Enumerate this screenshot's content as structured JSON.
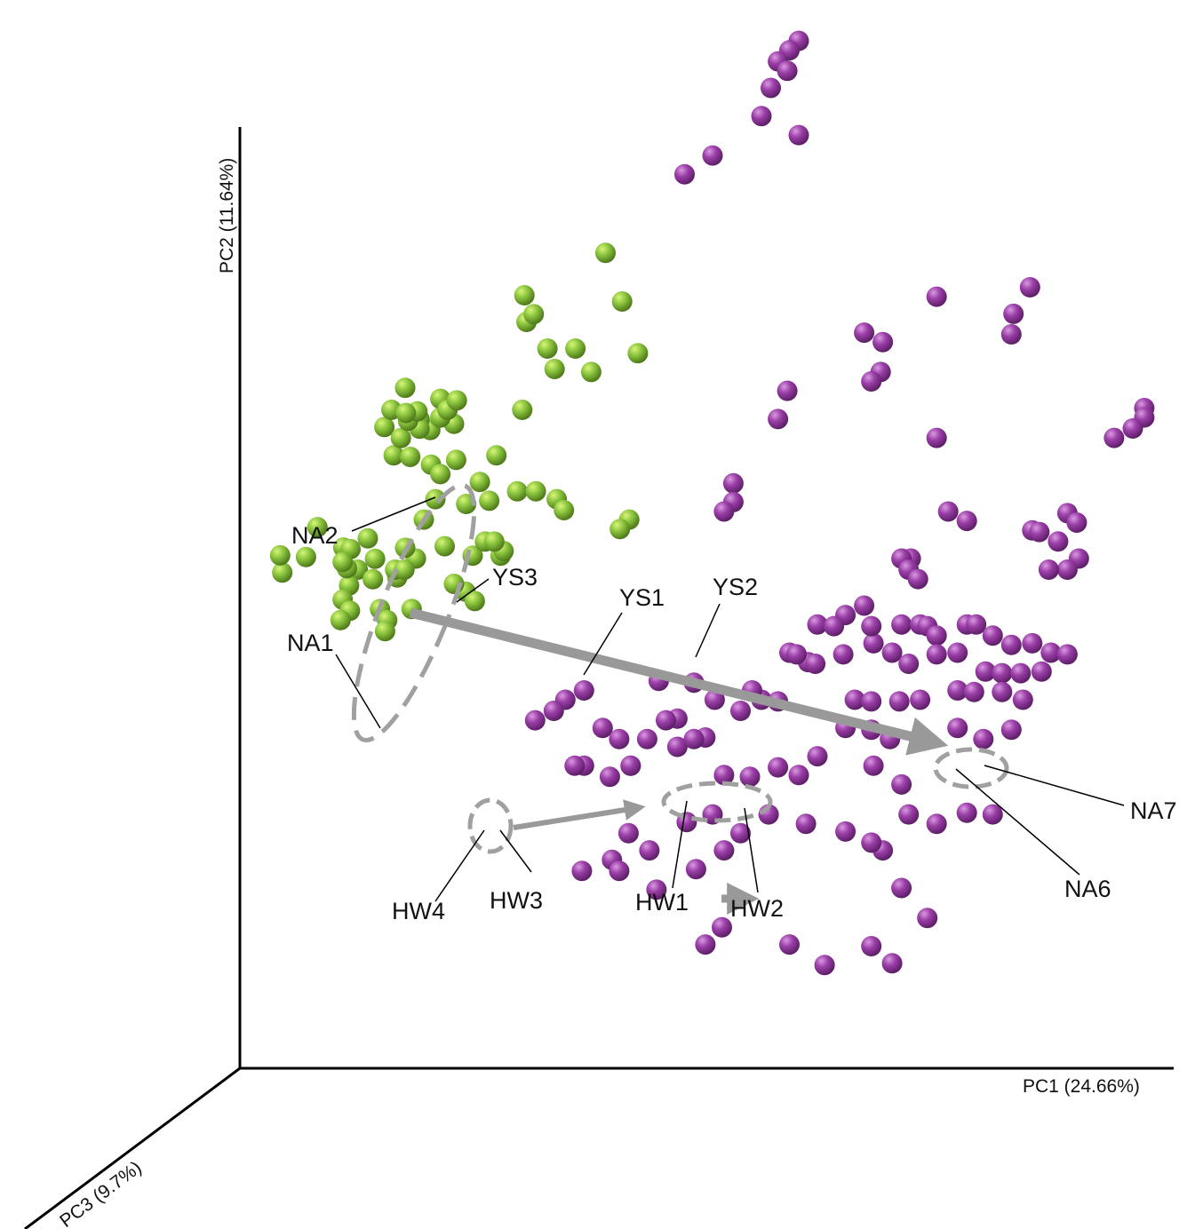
{
  "chart_data": {
    "type": "scatter",
    "projection": "3d",
    "axes": {
      "x": {
        "label": "PC1 (24.66%)"
      },
      "y": {
        "label": "PC2 (11.64%)"
      },
      "z": {
        "label": "PC3 (9.7%)"
      }
    },
    "grid": false,
    "legend": "none",
    "series": [
      {
        "color": "#8cc63f",
        "points": [
          [
            0.05,
            0.53,
            0.02
          ],
          [
            0.05,
            0.55,
            0.03
          ],
          [
            0.08,
            0.55,
            0.04
          ],
          [
            0.09,
            0.58,
            0.03
          ],
          [
            0.12,
            0.56,
            0.04
          ],
          [
            0.13,
            0.56,
            0.05
          ],
          [
            0.14,
            0.54,
            0.06
          ],
          [
            0.18,
            0.54,
            0.06
          ],
          [
            0.18,
            0.53,
            0.05
          ],
          [
            0.2,
            0.55,
            0.05
          ],
          [
            0.19,
            0.54,
            0.06
          ],
          [
            0.14,
            0.53,
            0.1
          ],
          [
            0.17,
            0.54,
            0.12
          ],
          [
            0.17,
            0.56,
            0.11
          ],
          [
            0.2,
            0.57,
            0.1
          ],
          [
            0.16,
            0.58,
            0.1
          ],
          [
            0.14,
            0.55,
            0.11
          ],
          [
            0.14,
            0.52,
            0.13
          ],
          [
            0.15,
            0.51,
            0.14
          ],
          [
            0.14,
            0.5,
            0.14
          ],
          [
            0.18,
            0.51,
            0.13
          ],
          [
            0.19,
            0.5,
            0.14
          ],
          [
            0.19,
            0.49,
            0.15
          ],
          [
            0.14,
            0.56,
            0.13
          ],
          [
            0.21,
            0.71,
            0.13
          ],
          [
            0.22,
            0.71,
            0.12
          ],
          [
            0.25,
            0.72,
            0.12
          ],
          [
            0.24,
            0.71,
            0.11
          ],
          [
            0.26,
            0.73,
            0.12
          ],
          [
            0.22,
            0.72,
            0.13
          ],
          [
            0.2,
            0.69,
            0.12
          ],
          [
            0.19,
            0.67,
            0.11
          ],
          [
            0.18,
            0.7,
            0.11
          ],
          [
            0.25,
            0.66,
            0.08
          ],
          [
            0.22,
            0.69,
            0.07
          ],
          [
            0.23,
            0.66,
            0.11
          ],
          [
            0.19,
            0.72,
            0.12
          ],
          [
            0.22,
            0.7,
            0.12
          ],
          [
            0.21,
            0.67,
            0.12
          ],
          [
            0.2,
            0.74,
            0.1
          ],
          [
            0.24,
            0.65,
            0.11
          ],
          [
            0.24,
            0.73,
            0.11
          ],
          [
            0.21,
            0.72,
            0.14
          ],
          [
            0.25,
            0.7,
            0.09
          ],
          [
            0.33,
            0.72,
            0.12
          ],
          [
            0.3,
            0.67,
            0.11
          ],
          [
            0.27,
            0.62,
            0.12
          ],
          [
            0.29,
            0.58,
            0.12
          ],
          [
            0.28,
            0.64,
            0.1
          ],
          [
            0.29,
            0.62,
            0.1
          ],
          [
            0.23,
            0.62,
            0.09
          ],
          [
            0.22,
            0.6,
            0.1
          ],
          [
            0.37,
            0.61,
            0.1
          ],
          [
            0.36,
            0.62,
            0.09
          ],
          [
            0.32,
            0.63,
            0.1
          ],
          [
            0.34,
            0.63,
            0.1
          ],
          [
            0.44,
            0.6,
            0.1
          ],
          [
            0.43,
            0.59,
            0.1
          ],
          [
            0.3,
            0.56,
            0.09
          ],
          [
            0.24,
            0.57,
            0.09
          ],
          [
            0.27,
            0.56,
            0.09
          ],
          [
            0.31,
            0.57,
            0.12
          ],
          [
            0.3,
            0.58,
            0.12
          ],
          [
            0.26,
            0.52,
            0.08
          ],
          [
            0.27,
            0.51,
            0.08
          ],
          [
            0.2,
            0.5,
            0.07
          ],
          [
            0.25,
            0.53,
            0.09
          ],
          [
            0.33,
            0.84,
            0.11
          ],
          [
            0.34,
            0.82,
            0.11
          ],
          [
            0.33,
            0.81,
            0.1
          ],
          [
            0.35,
            0.78,
            0.09
          ],
          [
            0.36,
            0.76,
            0.1
          ],
          [
            0.38,
            0.78,
            0.09
          ],
          [
            0.41,
            0.88,
            0.08
          ],
          [
            0.43,
            0.83,
            0.09
          ],
          [
            0.39,
            0.75,
            0.06
          ],
          [
            0.44,
            0.77,
            0.06
          ]
        ]
      },
      {
        "color": "#9b3fa8",
        "points": [
          [
            0.66,
            1.16,
            0.05
          ],
          [
            0.67,
            1.16,
            0.06
          ],
          [
            0.67,
            1.16,
            0.07
          ],
          [
            0.61,
            1.1,
            0.05
          ],
          [
            0.6,
            1.09,
            0.05
          ],
          [
            0.59,
            1.08,
            0.06
          ],
          [
            0.6,
            1.07,
            0.06
          ],
          [
            0.58,
            1.05,
            0.05
          ],
          [
            0.57,
            1.02,
            0.05
          ],
          [
            0.61,
            1.0,
            0.05
          ],
          [
            0.52,
            0.98,
            0.06
          ],
          [
            0.49,
            0.96,
            0.06
          ],
          [
            0.76,
            0.83,
            0.06
          ],
          [
            0.86,
            0.84,
            0.06
          ],
          [
            0.84,
            0.81,
            0.05
          ],
          [
            0.84,
            0.79,
            0.06
          ],
          [
            0.68,
            0.79,
            0.05
          ],
          [
            0.7,
            0.78,
            0.05
          ],
          [
            0.7,
            0.75,
            0.06
          ],
          [
            0.69,
            0.74,
            0.06
          ],
          [
            0.6,
            0.73,
            0.06
          ],
          [
            0.59,
            0.7,
            0.06
          ],
          [
            0.54,
            0.63,
            0.05
          ],
          [
            0.54,
            0.61,
            0.05
          ],
          [
            0.53,
            0.6,
            0.05
          ],
          [
            0.76,
            0.68,
            0.06
          ],
          [
            0.98,
            0.71,
            0.05
          ],
          [
            0.98,
            0.7,
            0.05
          ],
          [
            0.97,
            0.69,
            0.06
          ],
          [
            0.95,
            0.68,
            0.06
          ],
          [
            0.79,
            0.59,
            0.05
          ],
          [
            0.9,
            0.6,
            0.06
          ],
          [
            0.91,
            0.59,
            0.06
          ],
          [
            0.87,
            0.58,
            0.06
          ],
          [
            0.86,
            0.58,
            0.05
          ],
          [
            0.89,
            0.57,
            0.06
          ],
          [
            0.91,
            0.55,
            0.05
          ],
          [
            0.9,
            0.54,
            0.06
          ],
          [
            0.88,
            0.54,
            0.06
          ],
          [
            0.73,
            0.55,
            0.05
          ],
          [
            0.72,
            0.55,
            0.05
          ],
          [
            0.73,
            0.54,
            0.06
          ],
          [
            0.74,
            0.53,
            0.06
          ],
          [
            0.68,
            0.5,
            0.05
          ],
          [
            0.66,
            0.49,
            0.05
          ],
          [
            0.63,
            0.48,
            0.05
          ],
          [
            0.65,
            0.48,
            0.06
          ],
          [
            0.69,
            0.48,
            0.06
          ],
          [
            0.72,
            0.48,
            0.05
          ],
          [
            0.74,
            0.48,
            0.05
          ],
          [
            0.75,
            0.48,
            0.06
          ],
          [
            0.76,
            0.47,
            0.06
          ],
          [
            0.79,
            0.48,
            0.05
          ],
          [
            0.8,
            0.48,
            0.05
          ],
          [
            0.82,
            0.47,
            0.06
          ],
          [
            0.84,
            0.46,
            0.06
          ],
          [
            0.86,
            0.46,
            0.05
          ],
          [
            0.88,
            0.45,
            0.05
          ],
          [
            0.9,
            0.45,
            0.06
          ],
          [
            0.61,
            0.45,
            0.06
          ],
          [
            0.6,
            0.45,
            0.05
          ],
          [
            0.62,
            0.44,
            0.05
          ],
          [
            0.63,
            0.44,
            0.06
          ],
          [
            0.66,
            0.45,
            0.06
          ],
          [
            0.69,
            0.46,
            0.05
          ],
          [
            0.71,
            0.45,
            0.05
          ],
          [
            0.73,
            0.44,
            0.06
          ],
          [
            0.76,
            0.45,
            0.06
          ],
          [
            0.78,
            0.45,
            0.05
          ],
          [
            0.81,
            0.43,
            0.05
          ],
          [
            0.83,
            0.43,
            0.06
          ],
          [
            0.85,
            0.43,
            0.06
          ],
          [
            0.87,
            0.43,
            0.05
          ],
          [
            0.78,
            0.41,
            0.05
          ],
          [
            0.8,
            0.41,
            0.06
          ],
          [
            0.83,
            0.41,
            0.06
          ],
          [
            0.85,
            0.4,
            0.05
          ],
          [
            0.67,
            0.4,
            0.05
          ],
          [
            0.69,
            0.4,
            0.06
          ],
          [
            0.72,
            0.4,
            0.06
          ],
          [
            0.74,
            0.4,
            0.05
          ],
          [
            0.66,
            0.37,
            0.05
          ],
          [
            0.69,
            0.37,
            0.06
          ],
          [
            0.71,
            0.36,
            0.06
          ],
          [
            0.74,
            0.36,
            0.05
          ],
          [
            0.78,
            0.37,
            0.05
          ],
          [
            0.81,
            0.36,
            0.06
          ],
          [
            0.84,
            0.37,
            0.06
          ],
          [
            0.69,
            0.33,
            0.05
          ],
          [
            0.72,
            0.31,
            0.05
          ],
          [
            0.73,
            0.28,
            0.06
          ],
          [
            0.69,
            0.25,
            0.06
          ],
          [
            0.7,
            0.24,
            0.05
          ],
          [
            0.72,
            0.2,
            0.05
          ],
          [
            0.75,
            0.17,
            0.06
          ],
          [
            0.69,
            0.14,
            0.06
          ],
          [
            0.71,
            0.12,
            0.05
          ],
          [
            0.46,
            0.42,
            0.05
          ],
          [
            0.5,
            0.42,
            0.06
          ],
          [
            0.48,
            0.38,
            0.05
          ],
          [
            0.47,
            0.38,
            0.06
          ],
          [
            0.45,
            0.36,
            0.06
          ],
          [
            0.43,
            0.33,
            0.05
          ],
          [
            0.38,
            0.33,
            0.05
          ],
          [
            0.41,
            0.32,
            0.06
          ],
          [
            0.53,
            0.32,
            0.05
          ],
          [
            0.56,
            0.32,
            0.06
          ],
          [
            0.59,
            0.33,
            0.06
          ],
          [
            0.61,
            0.32,
            0.05
          ],
          [
            0.63,
            0.34,
            0.05
          ],
          [
            0.58,
            0.28,
            0.06
          ],
          [
            0.62,
            0.27,
            0.06
          ],
          [
            0.66,
            0.26,
            0.05
          ],
          [
            0.76,
            0.27,
            0.06
          ],
          [
            0.79,
            0.28,
            0.05
          ],
          [
            0.82,
            0.28,
            0.06
          ],
          [
            0.53,
            0.24,
            0.05
          ],
          [
            0.55,
            0.26,
            0.06
          ],
          [
            0.5,
            0.22,
            0.05
          ],
          [
            0.46,
            0.2,
            0.06
          ],
          [
            0.6,
            0.14,
            0.05
          ],
          [
            0.64,
            0.12,
            0.06
          ],
          [
            0.51,
            0.14,
            0.05
          ],
          [
            0.53,
            0.16,
            0.06
          ],
          [
            0.4,
            0.37,
            0.05
          ],
          [
            0.42,
            0.36,
            0.06
          ],
          [
            0.36,
            0.4,
            0.05
          ],
          [
            0.38,
            0.41,
            0.05
          ],
          [
            0.33,
            0.38,
            0.06
          ],
          [
            0.35,
            0.39,
            0.06
          ],
          [
            0.37,
            0.33,
            0.05
          ],
          [
            0.43,
            0.33,
            0.05
          ],
          [
            0.49,
            0.27,
            0.05
          ],
          [
            0.52,
            0.28,
            0.06
          ],
          [
            0.45,
            0.24,
            0.05
          ],
          [
            0.41,
            0.23,
            0.05
          ],
          [
            0.42,
            0.22,
            0.06
          ],
          [
            0.38,
            0.22,
            0.06
          ],
          [
            0.43,
            0.26,
            0.06
          ],
          [
            0.57,
            0.4,
            0.05
          ],
          [
            0.59,
            0.4,
            0.06
          ],
          [
            0.55,
            0.39,
            0.06
          ],
          [
            0.52,
            0.4,
            0.05
          ],
          [
            0.56,
            0.41,
            0.05
          ],
          [
            0.77,
            0.6,
            0.05
          ],
          [
            0.5,
            0.36,
            0.06
          ],
          [
            0.48,
            0.35,
            0.05
          ],
          [
            0.51,
            0.36,
            0.05
          ]
        ]
      }
    ],
    "annotations": [
      {
        "label": "NA2"
      },
      {
        "label": "NA1"
      },
      {
        "label": "YS3"
      },
      {
        "label": "YS1"
      },
      {
        "label": "YS2"
      },
      {
        "label": "HW4"
      },
      {
        "label": "HW3"
      },
      {
        "label": "HW1"
      },
      {
        "label": "HW2"
      },
      {
        "label": "NA7"
      },
      {
        "label": "NA6"
      }
    ]
  }
}
